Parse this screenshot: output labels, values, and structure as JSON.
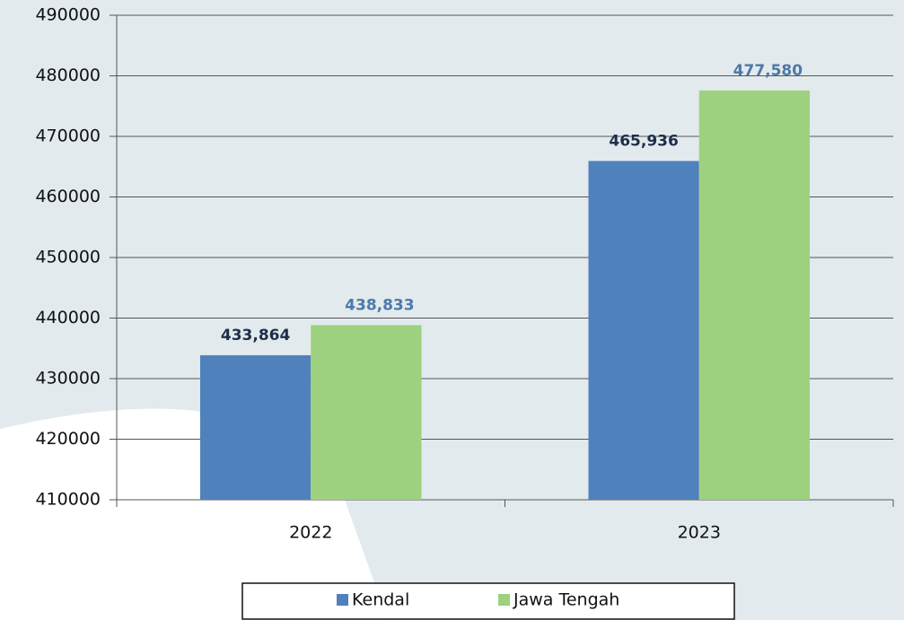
{
  "chart_data": {
    "type": "bar",
    "categories": [
      "2022",
      "2023"
    ],
    "series": [
      {
        "name": "Kendal",
        "color": "#4f81bd",
        "label_color": "#1f2d4a",
        "values": [
          433864,
          465936
        ],
        "value_labels": [
          "433,864",
          "465,936"
        ]
      },
      {
        "name": "Jawa Tengah",
        "color": "#9dd17f",
        "label_color": "#4d79a8",
        "values": [
          438833,
          477580
        ],
        "value_labels": [
          "438,833",
          "477,580"
        ]
      }
    ],
    "ylim": [
      410000,
      490000
    ],
    "yticks": [
      410000,
      420000,
      430000,
      440000,
      450000,
      460000,
      470000,
      480000,
      490000
    ],
    "grid": true,
    "legend": "bottom"
  }
}
